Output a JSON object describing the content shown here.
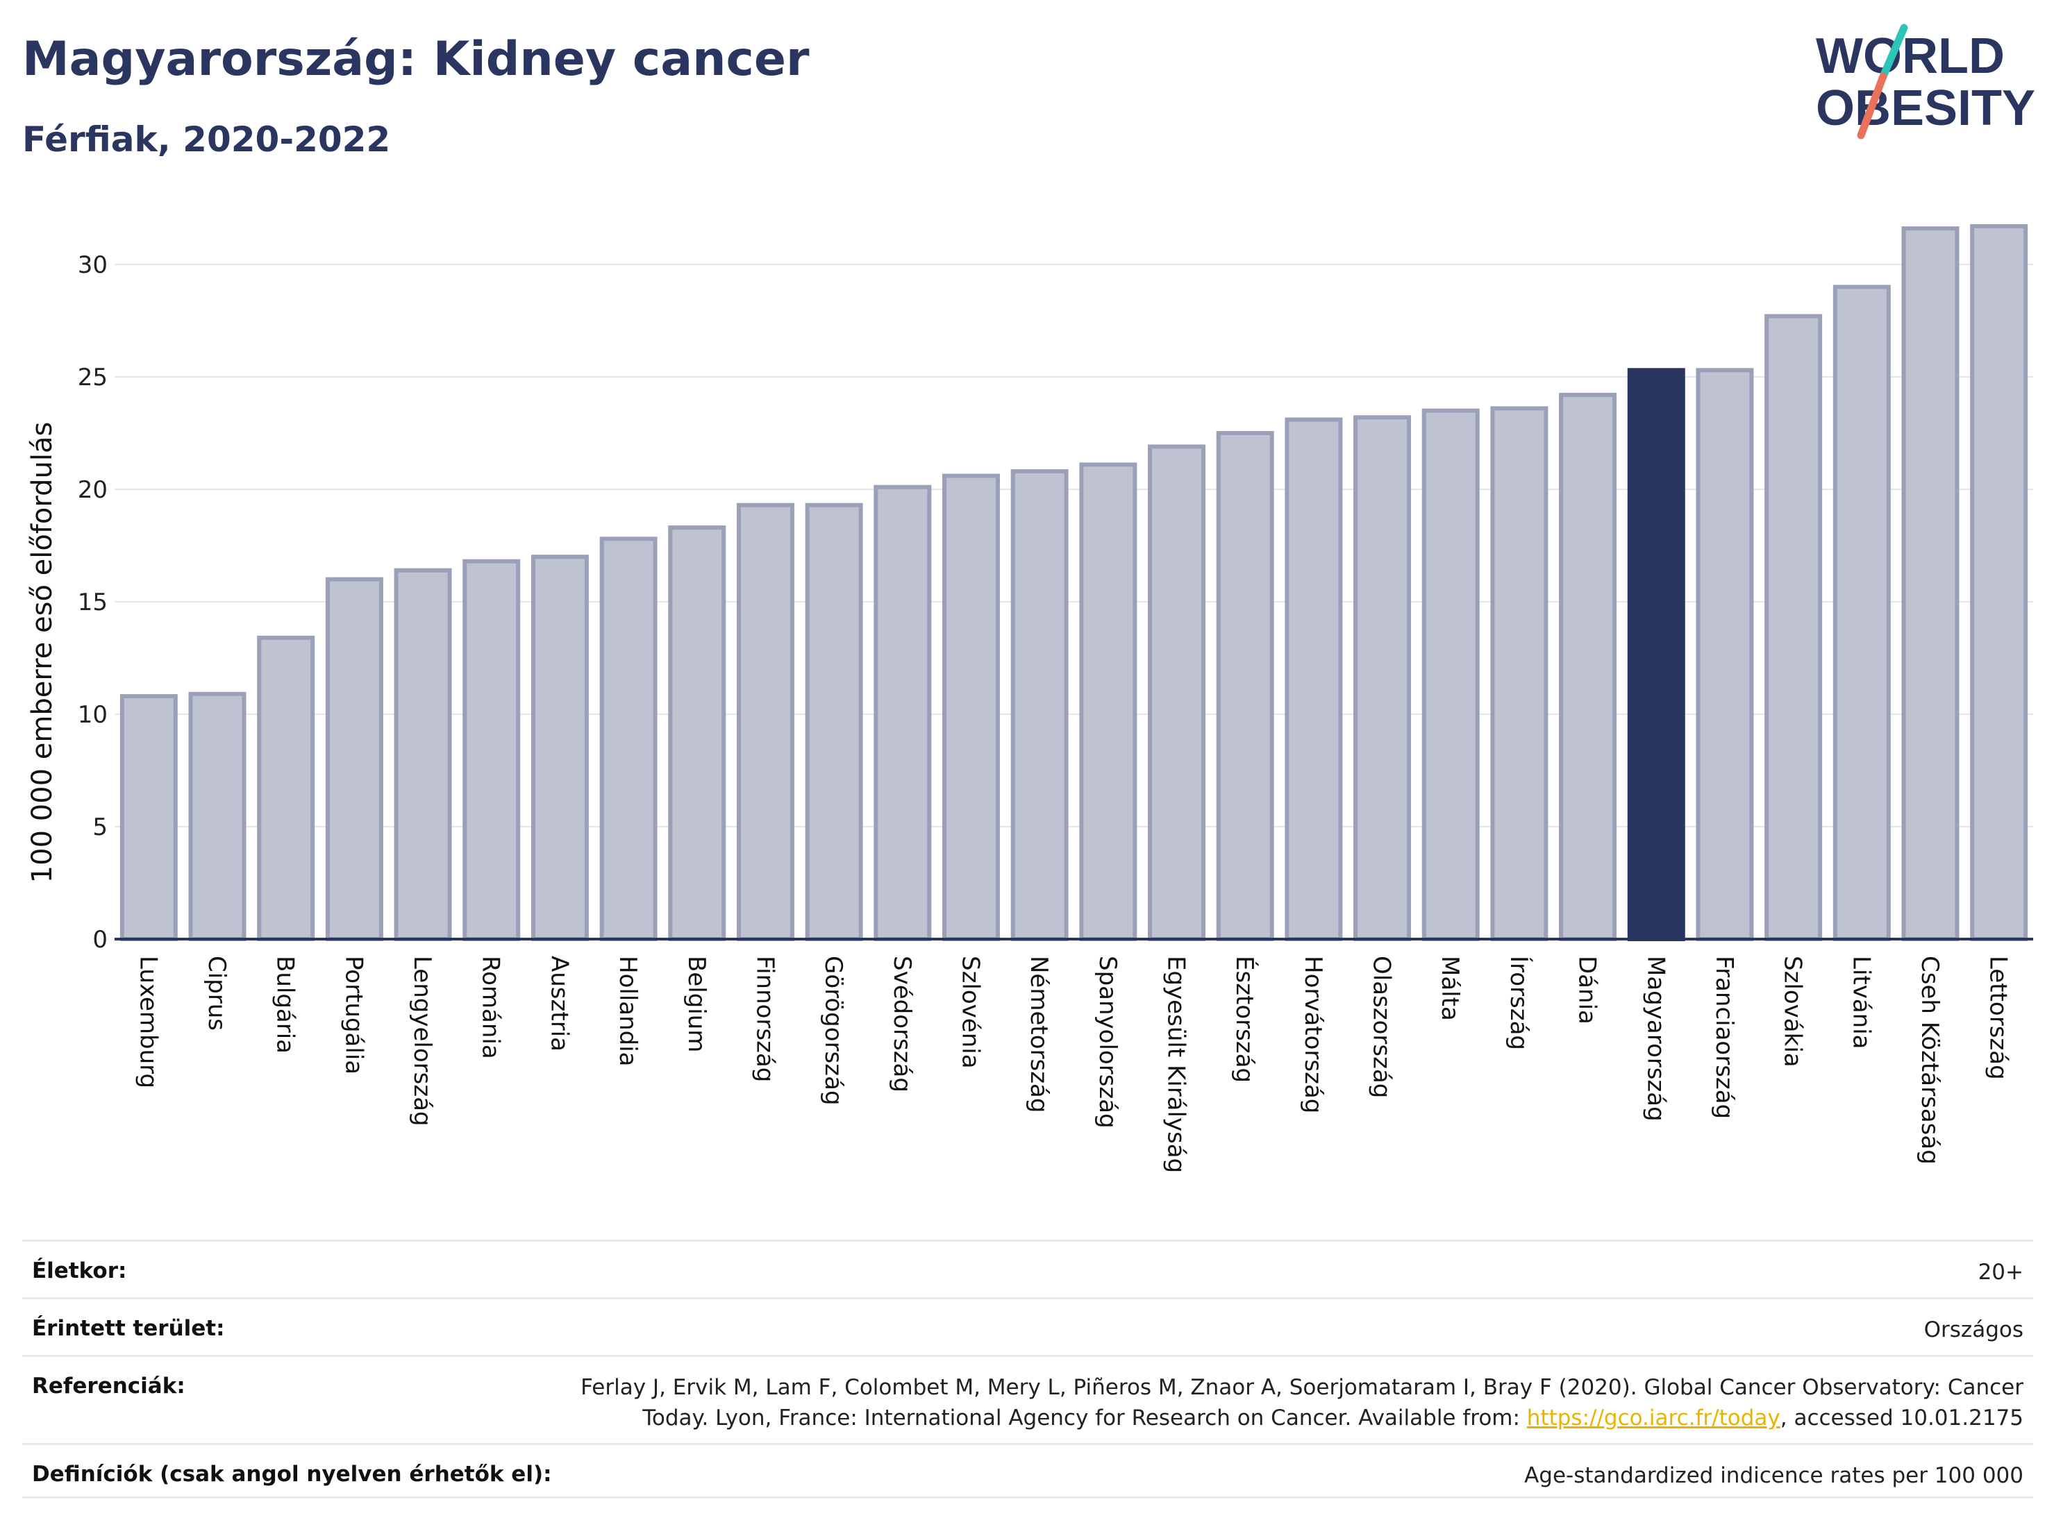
{
  "header": {
    "title": "Magyarország: Kidney cancer",
    "subtitle": "Férfiak, 2020-2022"
  },
  "logo": {
    "line1": "WORLD",
    "line2": "OBESITY",
    "colors": {
      "text": "#2a3560",
      "teal": "#2ec4b6",
      "coral": "#e8735a"
    }
  },
  "chart_data": {
    "type": "bar",
    "ylabel": "100 000 emberre eső előfordulás",
    "ylim": [
      0,
      33
    ],
    "yticks": [
      0,
      5,
      10,
      15,
      20,
      25,
      30
    ],
    "grid": true,
    "highlight": "Magyarország",
    "colors": {
      "bar": "#bfc3d1",
      "bar_edge": "#9aa0b8",
      "highlight": "#2a3560"
    },
    "categories": [
      "Luxemburg",
      "Ciprus",
      "Bulgária",
      "Portugália",
      "Lengyelország",
      "Románia",
      "Ausztria",
      "Hollandia",
      "Belgium",
      "Finnország",
      "Görögország",
      "Svédország",
      "Szlovénia",
      "Németország",
      "Spanyolország",
      "Egyesült Királyság",
      "Észtország",
      "Horvátország",
      "Olaszország",
      "Málta",
      "Írország",
      "Dánia",
      "Magyarország",
      "Franciaország",
      "Szlovákia",
      "Litvánia",
      "Cseh Köztársaság",
      "Lettország"
    ],
    "values": [
      10.8,
      10.9,
      13.4,
      16.0,
      16.4,
      16.8,
      17.0,
      17.8,
      18.3,
      19.3,
      19.3,
      20.1,
      20.6,
      20.8,
      21.1,
      21.9,
      22.5,
      23.1,
      23.2,
      23.5,
      23.6,
      24.2,
      25.3,
      25.3,
      27.7,
      29.0,
      31.6,
      31.7
    ]
  },
  "info": {
    "age_label": "Életkor:",
    "age_value": "20+",
    "area_label": "Érintett terület:",
    "area_value": "Országos",
    "ref_label": "Referenciák:",
    "ref_line1": "Ferlay J, Ervik M, Lam F, Colombet M, Mery L, Piñeros M, Znaor A, Soerjomataram I, Bray F (2020). Global Cancer Observatory: Cancer",
    "ref_line2_pre": "Today. Lyon, France: International Agency for Research on Cancer. Available from: ",
    "ref_link": "https://gco.iarc.fr/today",
    "ref_line2_post": ", accessed 10.01.2175",
    "def_label": "Definíciók (csak angol nyelven érhetők el):",
    "def_value": "Age-standardized indicence rates per 100 000"
  }
}
